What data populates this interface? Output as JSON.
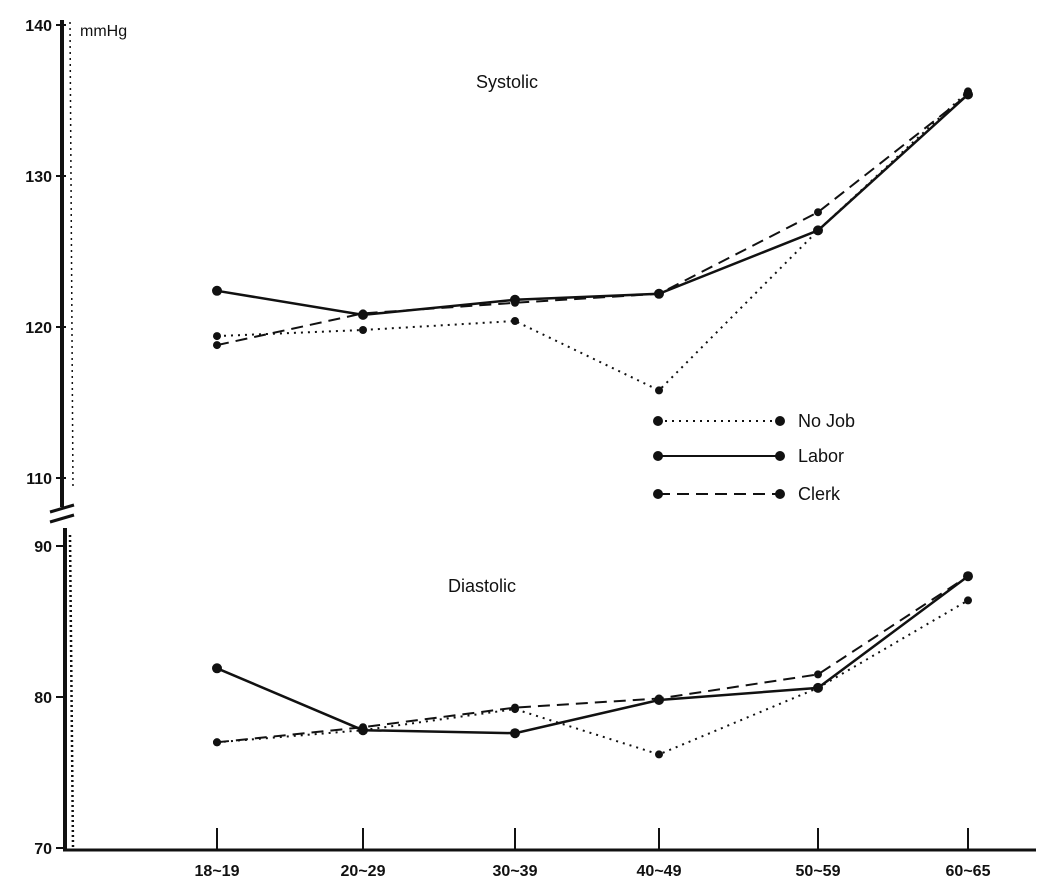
{
  "chart_data": {
    "type": "line",
    "unit": "mmHg",
    "categories": [
      "18~19",
      "20~29",
      "30~39",
      "40~49",
      "50~59",
      "60~65"
    ],
    "y_axis_break": true,
    "panels": [
      {
        "title": "Systolic",
        "ylim": [
          110,
          140
        ],
        "y_ticks": [
          "140",
          "130",
          "120",
          "110"
        ],
        "series": [
          {
            "name": "No Job",
            "style": "dotted",
            "values": [
              119.4,
              119.8,
              120.4,
              115.8,
              126.4,
              135.6
            ]
          },
          {
            "name": "Labor",
            "style": "solid",
            "values": [
              122.4,
              120.8,
              121.8,
              122.2,
              126.4,
              135.4
            ]
          },
          {
            "name": "Clerk",
            "style": "dashed",
            "values": [
              118.8,
              120.9,
              121.6,
              122.2,
              127.6,
              135.4
            ]
          }
        ]
      },
      {
        "title": "Diastolic",
        "ylim": [
          70,
          90
        ],
        "y_ticks": [
          "90",
          "80",
          "70"
        ],
        "series": [
          {
            "name": "No Job",
            "style": "dotted",
            "values": [
              77.0,
              77.8,
              79.2,
              76.2,
              80.6,
              86.4
            ]
          },
          {
            "name": "Labor",
            "style": "solid",
            "values": [
              81.9,
              77.8,
              77.6,
              79.8,
              80.6,
              88.0
            ]
          },
          {
            "name": "Clerk",
            "style": "dashed",
            "values": [
              77.0,
              78.0,
              79.3,
              79.9,
              81.5,
              88.0
            ]
          }
        ]
      }
    ],
    "legend": {
      "placement": "center-right",
      "entries": [
        {
          "label": "No Job",
          "style": "dotted"
        },
        {
          "label": "Labor",
          "style": "solid"
        },
        {
          "label": "Clerk",
          "style": "dashed"
        }
      ]
    },
    "colors": {
      "ink": "#111111",
      "background": "#ffffff"
    }
  }
}
